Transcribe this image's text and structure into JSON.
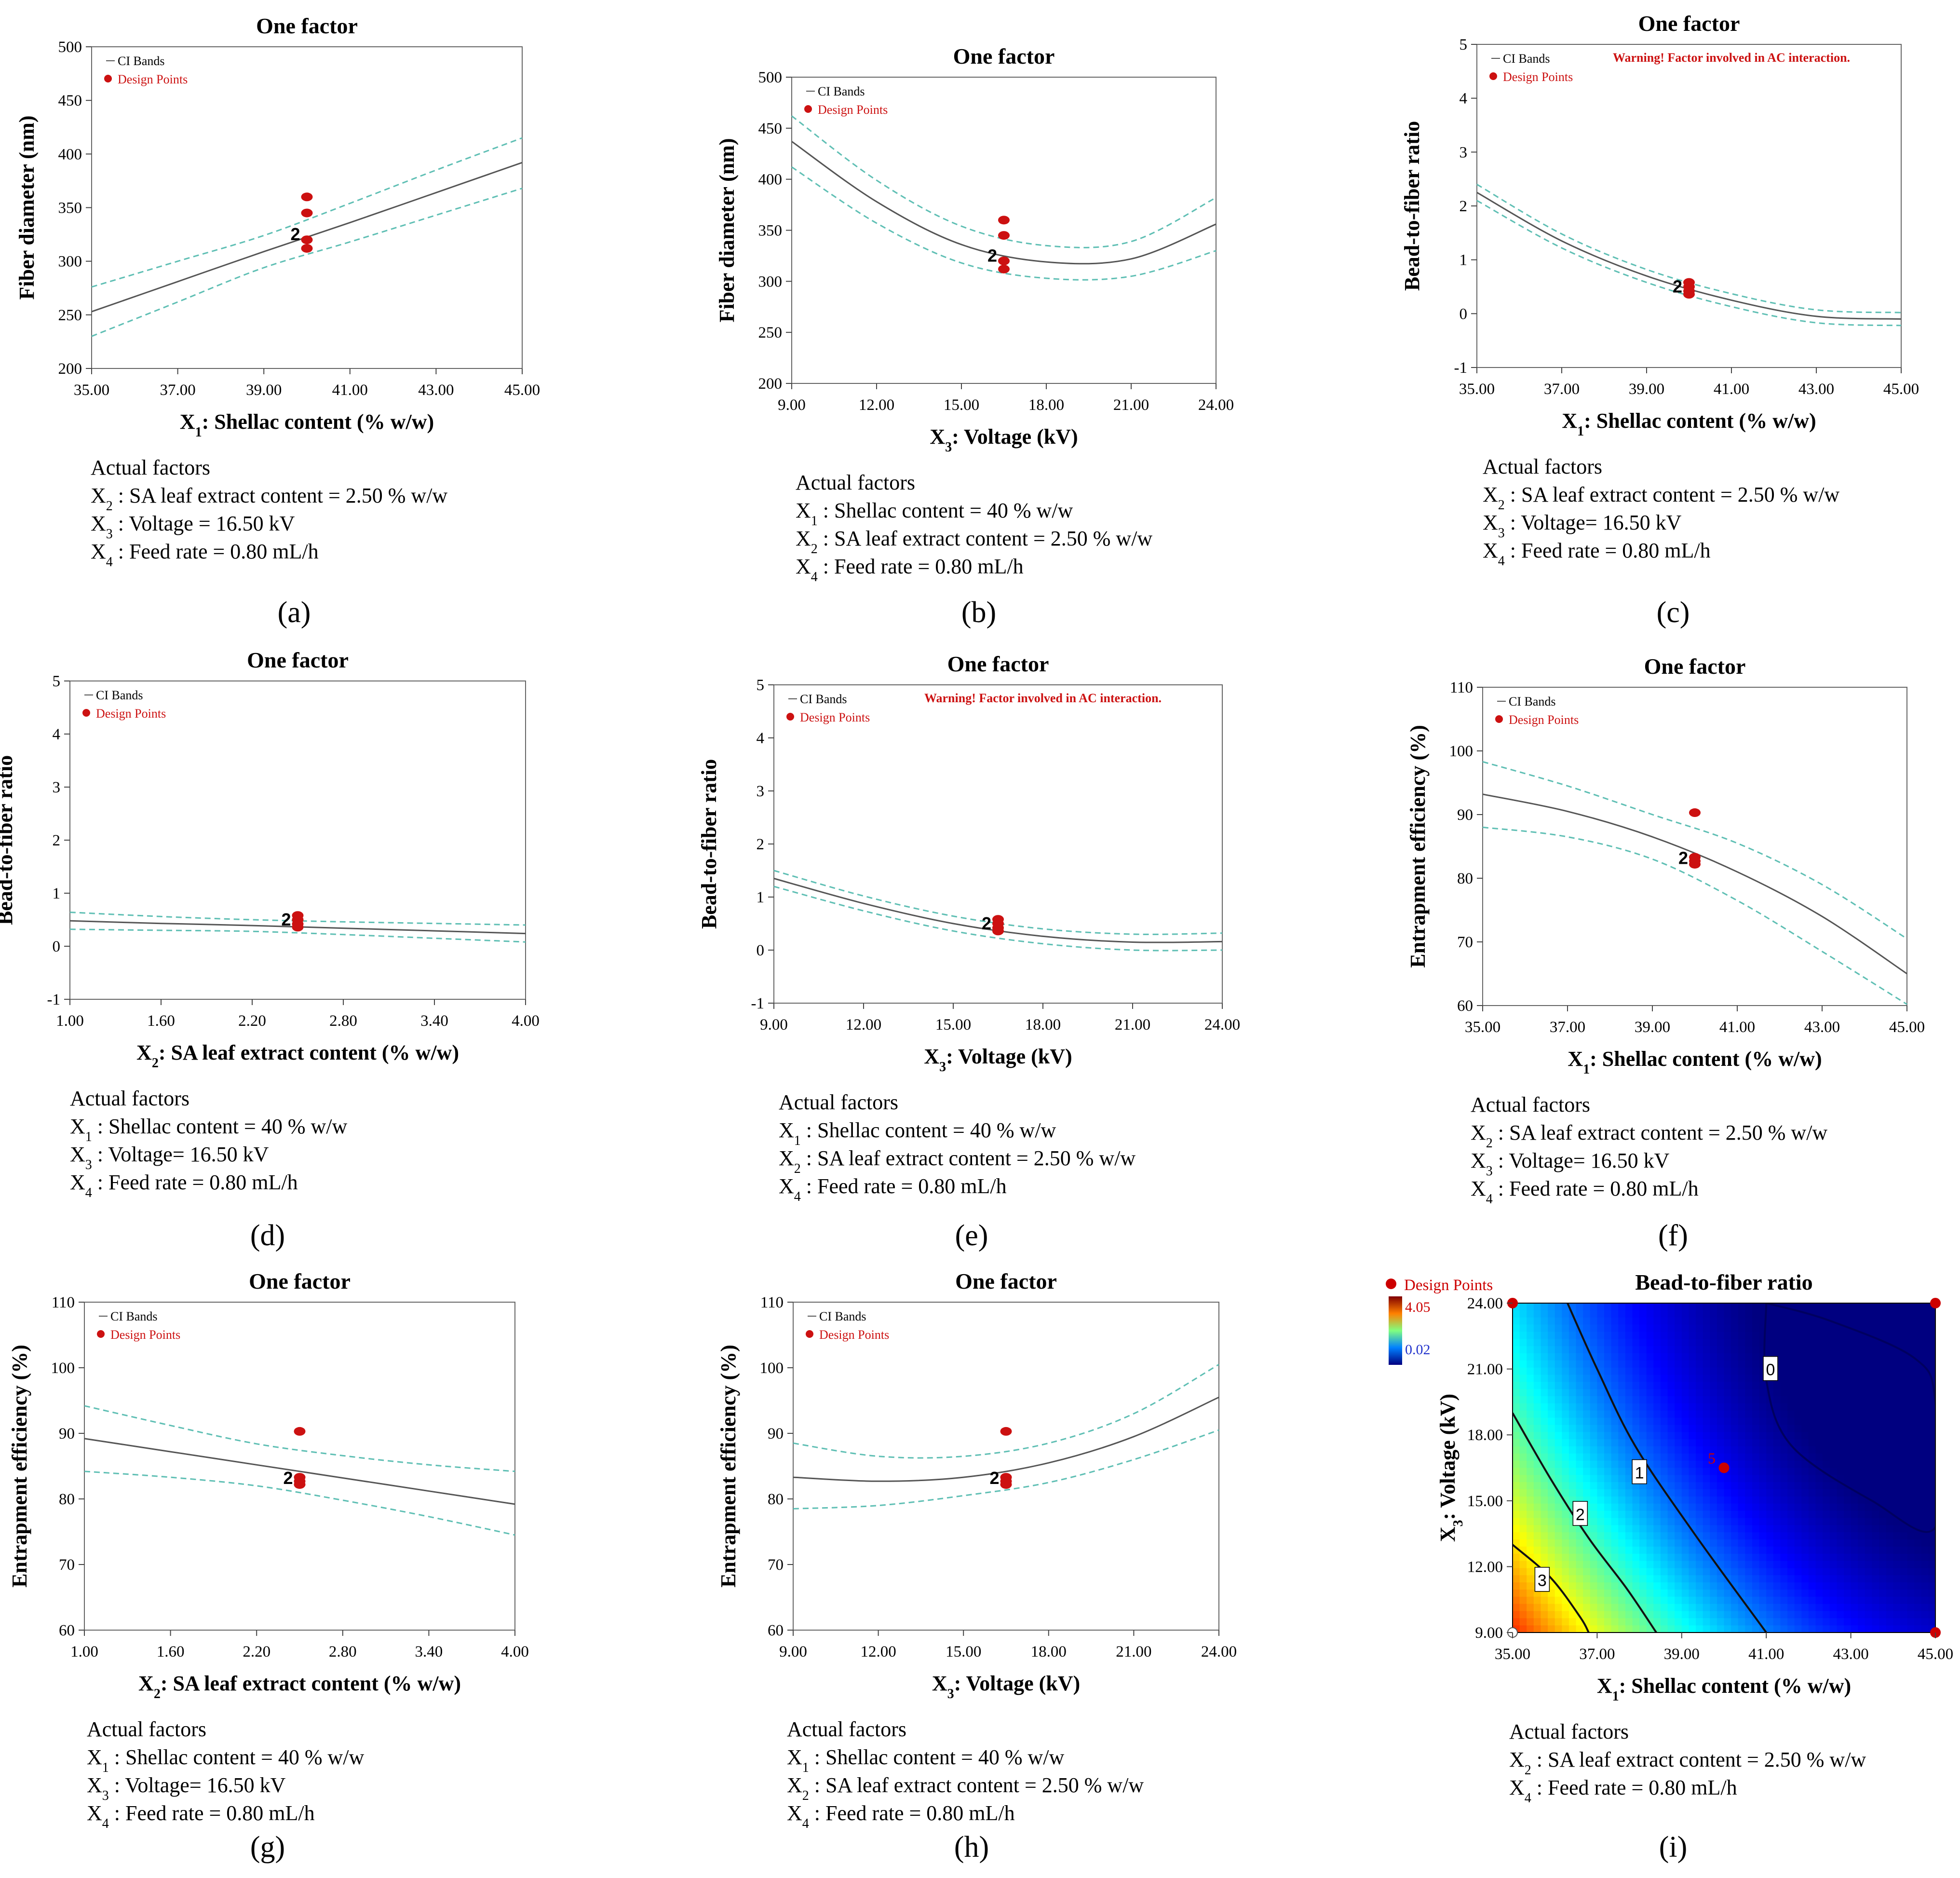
{
  "figure": {
    "panel_labels": [
      "(a)",
      "(b)",
      "(c)",
      "(d)",
      "(e)",
      "(f)",
      "(g)",
      "(h)",
      "(i)"
    ],
    "legend_ci": "CI Bands",
    "legend_design": "Design Points",
    "warning": "Warning! Factor involved in AC interaction.",
    "actual_factors_heading": "Actual factors"
  },
  "chart_data": [
    {
      "id": "a",
      "type": "line",
      "title": "One factor",
      "xlabel": "X1: Shellac content (% w/w)",
      "ylabel": "Fiber diameter (nm)",
      "xlim": [
        35,
        45
      ],
      "ylim": [
        200,
        500
      ],
      "xticks": [
        "35.00",
        "37.00",
        "39.00",
        "41.00",
        "43.00",
        "45.00"
      ],
      "yticks": [
        "200",
        "250",
        "300",
        "350",
        "400",
        "450",
        "500"
      ],
      "x": [
        35,
        37,
        39,
        41,
        43,
        45
      ],
      "series": [
        {
          "name": "Prediction",
          "values": [
            253,
            281,
            309,
            336,
            364,
            392
          ]
        },
        {
          "name": "CI lower",
          "values": [
            230,
            262,
            294,
            318,
            343,
            368
          ]
        },
        {
          "name": "CI upper",
          "values": [
            276,
            300,
            324,
            354,
            385,
            415
          ]
        }
      ],
      "design_points": [
        {
          "x": 40,
          "y": 360
        },
        {
          "x": 40,
          "y": 345
        },
        {
          "x": 40,
          "y": 320
        },
        {
          "x": 40,
          "y": 312
        }
      ],
      "replicate_label": {
        "text": "2",
        "x": 40,
        "y": 326
      },
      "actual_factors": [
        "X2 : SA leaf extract content = 2.50 % w/w",
        "X3 : Voltage = 16.50 kV",
        "X4 : Feed rate = 0.80 mL/h"
      ]
    },
    {
      "id": "b",
      "type": "line",
      "title": "One factor",
      "xlabel": "X3: Voltage (kV)",
      "ylabel": "Fiber diameter (nm)",
      "xlim": [
        9,
        24
      ],
      "ylim": [
        200,
        500
      ],
      "xticks": [
        "9.00",
        "12.00",
        "15.00",
        "18.00",
        "21.00",
        "24.00"
      ],
      "yticks": [
        "200",
        "250",
        "300",
        "350",
        "400",
        "450",
        "500"
      ],
      "x": [
        9,
        12,
        15,
        18,
        21,
        24
      ],
      "series": [
        {
          "name": "Prediction",
          "values": [
            437,
            378,
            336,
            319,
            322,
            356
          ]
        },
        {
          "name": "CI lower",
          "values": [
            412,
            357,
            318,
            303,
            305,
            330
          ]
        },
        {
          "name": "CI upper",
          "values": [
            462,
            399,
            354,
            335,
            339,
            382
          ]
        }
      ],
      "design_points": [
        {
          "x": 16.5,
          "y": 360
        },
        {
          "x": 16.5,
          "y": 345
        },
        {
          "x": 16.5,
          "y": 320
        },
        {
          "x": 16.5,
          "y": 312
        }
      ],
      "replicate_label": {
        "text": "2",
        "x": 16.5,
        "y": 326
      },
      "actual_factors": [
        "X1 : Shellac content = 40 % w/w",
        "X2 : SA leaf extract content = 2.50 % w/w",
        "X4 : Feed rate = 0.80 mL/h"
      ]
    },
    {
      "id": "c",
      "type": "line",
      "title": "One factor",
      "xlabel": "X1: Shellac content (% w/w)",
      "ylabel": "Bead-to-fiber ratio",
      "xlim": [
        35,
        45
      ],
      "ylim": [
        -1,
        5
      ],
      "xticks": [
        "35.00",
        "37.00",
        "39.00",
        "41.00",
        "43.00",
        "45.00"
      ],
      "yticks": [
        "-1",
        "0",
        "1",
        "2",
        "3",
        "4",
        "5"
      ],
      "warning": true,
      "x": [
        35,
        37,
        39,
        41,
        43,
        45
      ],
      "series": [
        {
          "name": "Prediction",
          "values": [
            2.25,
            1.35,
            0.7,
            0.25,
            -0.05,
            -0.1
          ]
        },
        {
          "name": "CI lower",
          "values": [
            2.1,
            1.22,
            0.58,
            0.13,
            -0.17,
            -0.22
          ]
        },
        {
          "name": "CI upper",
          "values": [
            2.4,
            1.48,
            0.82,
            0.37,
            0.07,
            0.02
          ]
        }
      ],
      "design_points": [
        {
          "x": 40,
          "y": 0.58
        },
        {
          "x": 40,
          "y": 0.5
        },
        {
          "x": 40,
          "y": 0.42
        },
        {
          "x": 40,
          "y": 0.36
        }
      ],
      "replicate_label": {
        "text": "2",
        "x": 40,
        "y": 0.52
      },
      "actual_factors": [
        "X2 : SA leaf extract content = 2.50 % w/w",
        "X3 : Voltage= 16.50 kV",
        "X4 : Feed rate = 0.80 mL/h"
      ]
    },
    {
      "id": "d",
      "type": "line",
      "title": "One factor",
      "xlabel": "X2: SA leaf extract content (% w/w)",
      "ylabel": "Bead-to-fiber ratio",
      "xlim": [
        1,
        4
      ],
      "ylim": [
        -1,
        5
      ],
      "xticks": [
        "1.00",
        "1.60",
        "2.20",
        "2.80",
        "3.40",
        "4.00"
      ],
      "yticks": [
        "-1",
        "0",
        "1",
        "2",
        "3",
        "4",
        "5"
      ],
      "x": [
        1,
        1.6,
        2.2,
        2.8,
        3.4,
        4
      ],
      "series": [
        {
          "name": "Prediction",
          "values": [
            0.48,
            0.43,
            0.39,
            0.34,
            0.29,
            0.24
          ]
        },
        {
          "name": "CI lower",
          "values": [
            0.32,
            0.3,
            0.28,
            0.22,
            0.15,
            0.08
          ]
        },
        {
          "name": "CI upper",
          "values": [
            0.64,
            0.56,
            0.5,
            0.46,
            0.43,
            0.4
          ]
        }
      ],
      "design_points": [
        {
          "x": 2.5,
          "y": 0.58
        },
        {
          "x": 2.5,
          "y": 0.5
        },
        {
          "x": 2.5,
          "y": 0.42
        },
        {
          "x": 2.5,
          "y": 0.36
        }
      ],
      "replicate_label": {
        "text": "2",
        "x": 2.5,
        "y": 0.52
      },
      "actual_factors": [
        "X1 : Shellac content = 40 % w/w",
        "X3 : Voltage= 16.50 kV",
        "X4 : Feed rate = 0.80 mL/h"
      ]
    },
    {
      "id": "e",
      "type": "line",
      "title": "One factor",
      "xlabel": "X3: Voltage (kV)",
      "ylabel": "Bead-to-fiber ratio",
      "xlim": [
        9,
        24
      ],
      "ylim": [
        -1,
        5
      ],
      "xticks": [
        "9.00",
        "12.00",
        "15.00",
        "18.00",
        "21.00",
        "24.00"
      ],
      "yticks": [
        "-1",
        "0",
        "1",
        "2",
        "3",
        "4",
        "5"
      ],
      "warning": true,
      "x": [
        9,
        12,
        15,
        18,
        21,
        24
      ],
      "series": [
        {
          "name": "Prediction",
          "values": [
            1.35,
            0.88,
            0.5,
            0.26,
            0.15,
            0.16
          ]
        },
        {
          "name": "CI lower",
          "values": [
            1.2,
            0.74,
            0.36,
            0.12,
            0.0,
            0.0
          ]
        },
        {
          "name": "CI upper",
          "values": [
            1.5,
            1.02,
            0.64,
            0.4,
            0.3,
            0.32
          ]
        }
      ],
      "design_points": [
        {
          "x": 16.5,
          "y": 0.58
        },
        {
          "x": 16.5,
          "y": 0.5
        },
        {
          "x": 16.5,
          "y": 0.42
        },
        {
          "x": 16.5,
          "y": 0.36
        }
      ],
      "replicate_label": {
        "text": "2",
        "x": 16.5,
        "y": 0.52
      },
      "actual_factors": [
        "X1 : Shellac content = 40 % w/w",
        "X2 : SA leaf extract content = 2.50 % w/w",
        "X4 : Feed rate = 0.80 mL/h"
      ]
    },
    {
      "id": "f",
      "type": "line",
      "title": "One factor",
      "xlabel": "X1: Shellac content (% w/w)",
      "ylabel": "Entrapment efficiency (%)",
      "xlim": [
        35,
        45
      ],
      "ylim": [
        60,
        110
      ],
      "xticks": [
        "35.00",
        "37.00",
        "39.00",
        "41.00",
        "43.00",
        "45.00"
      ],
      "yticks": [
        "60",
        "70",
        "80",
        "90",
        "100",
        "110"
      ],
      "x": [
        35,
        37,
        39,
        41,
        43,
        45
      ],
      "series": [
        {
          "name": "Prediction",
          "values": [
            93.2,
            90.5,
            86.5,
            81.0,
            74.0,
            65.0
          ]
        },
        {
          "name": "CI lower",
          "values": [
            88.0,
            86.5,
            83.0,
            76.5,
            68.5,
            60.2
          ]
        },
        {
          "name": "CI upper",
          "values": [
            98.3,
            94.5,
            90.0,
            85.5,
            79.0,
            70.5
          ]
        }
      ],
      "design_points": [
        {
          "x": 40,
          "y": 90.3
        },
        {
          "x": 40,
          "y": 83.3
        },
        {
          "x": 40,
          "y": 82.7
        },
        {
          "x": 40,
          "y": 82.2
        }
      ],
      "replicate_label": {
        "text": "2",
        "x": 40,
        "y": 83.3
      },
      "actual_factors": [
        "X2 : SA leaf extract content = 2.50 % w/w",
        "X3 : Voltage= 16.50 kV",
        "X4 : Feed rate = 0.80 mL/h"
      ]
    },
    {
      "id": "g",
      "type": "line",
      "title": "One factor",
      "xlabel": "X2: SA leaf extract content (% w/w)",
      "ylabel": "Entrapment efficiency (%)",
      "xlim": [
        1,
        4
      ],
      "ylim": [
        60,
        110
      ],
      "xticks": [
        "1.00",
        "1.60",
        "2.20",
        "2.80",
        "3.40",
        "4.00"
      ],
      "yticks": [
        "60",
        "70",
        "80",
        "90",
        "100",
        "110"
      ],
      "x": [
        1,
        1.6,
        2.2,
        2.8,
        3.4,
        4
      ],
      "series": [
        {
          "name": "Prediction",
          "values": [
            89.2,
            87.2,
            85.2,
            83.2,
            81.2,
            79.2
          ]
        },
        {
          "name": "CI lower",
          "values": [
            84.2,
            83.3,
            82.0,
            79.8,
            77.3,
            74.5
          ]
        },
        {
          "name": "CI upper",
          "values": [
            94.2,
            91.2,
            88.4,
            86.6,
            85.2,
            84.2
          ]
        }
      ],
      "design_points": [
        {
          "x": 2.5,
          "y": 90.3
        },
        {
          "x": 2.5,
          "y": 83.3
        },
        {
          "x": 2.5,
          "y": 82.7
        },
        {
          "x": 2.5,
          "y": 82.2
        }
      ],
      "replicate_label": {
        "text": "2",
        "x": 2.5,
        "y": 83.3
      },
      "actual_factors": [
        "X1 : Shellac content = 40 % w/w",
        "X3 : Voltage= 16.50 kV",
        "X4 : Feed rate = 0.80 mL/h"
      ]
    },
    {
      "id": "h",
      "type": "line",
      "title": "One factor",
      "xlabel": "X3: Voltage (kV)",
      "ylabel": "Entrapment efficiency (%)",
      "xlim": [
        9,
        24
      ],
      "ylim": [
        60,
        110
      ],
      "xticks": [
        "9.00",
        "12.00",
        "15.00",
        "18.00",
        "21.00",
        "24.00"
      ],
      "yticks": [
        "60",
        "70",
        "80",
        "90",
        "100",
        "110"
      ],
      "x": [
        9,
        12,
        15,
        18,
        21,
        24
      ],
      "series": [
        {
          "name": "Prediction",
          "values": [
            83.3,
            82.7,
            83.3,
            85.5,
            89.5,
            95.5
          ]
        },
        {
          "name": "CI lower",
          "values": [
            78.5,
            79.0,
            80.5,
            82.5,
            86.0,
            90.5
          ]
        },
        {
          "name": "CI upper",
          "values": [
            88.5,
            86.5,
            86.5,
            88.5,
            93.0,
            100.5
          ]
        }
      ],
      "design_points": [
        {
          "x": 16.5,
          "y": 90.3
        },
        {
          "x": 16.5,
          "y": 83.3
        },
        {
          "x": 16.5,
          "y": 82.7
        },
        {
          "x": 16.5,
          "y": 82.2
        }
      ],
      "replicate_label": {
        "text": "2",
        "x": 16.5,
        "y": 83.3
      },
      "actual_factors": [
        "X1 : Shellac content = 40 % w/w",
        "X2 : SA leaf extract content = 2.50 % w/w",
        "X4 : Feed rate = 0.80 mL/h"
      ]
    },
    {
      "id": "i",
      "type": "heatmap",
      "title": "Bead-to-fiber ratio",
      "xlabel": "X1: Shellac content (% w/w)",
      "ylabel": "X3: Voltage (kV)",
      "xlim": [
        35,
        45
      ],
      "ylim": [
        9,
        24
      ],
      "xticks": [
        "35.00",
        "37.00",
        "39.00",
        "41.00",
        "43.00",
        "45.00"
      ],
      "yticks": [
        "9.00",
        "12.00",
        "15.00",
        "18.00",
        "21.00",
        "24.00"
      ],
      "colorbar": {
        "max": "4.05",
        "min": "0.02"
      },
      "contour_labels": [
        {
          "text": "0",
          "x": 41.1,
          "y": 21.0
        },
        {
          "text": "1",
          "x": 38.0,
          "y": 16.3
        },
        {
          "text": "2",
          "x": 36.6,
          "y": 14.4
        },
        {
          "text": "3",
          "x": 35.7,
          "y": 11.4
        }
      ],
      "design_points": [
        {
          "x": 35,
          "y": 24
        },
        {
          "x": 45,
          "y": 24
        },
        {
          "x": 35,
          "y": 9
        },
        {
          "x": 45,
          "y": 9
        },
        {
          "x": 40,
          "y": 16.5
        }
      ],
      "center_label": {
        "text": "5",
        "x": 39.8,
        "y": 16.7
      },
      "actual_factors": [
        "X2 : SA leaf extract content = 2.50 % w/w",
        "X4 : Feed rate = 0.80 mL/h"
      ]
    }
  ]
}
